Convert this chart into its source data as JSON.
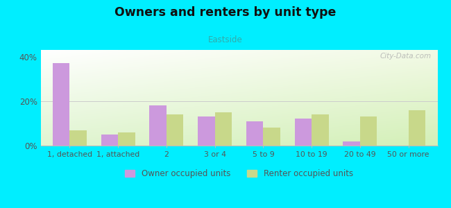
{
  "title": "Owners and renters by unit type",
  "subtitle": "Eastside",
  "categories": [
    "1, detached",
    "1, attached",
    "2",
    "3 or 4",
    "5 to 9",
    "10 to 19",
    "20 to 49",
    "50 or more"
  ],
  "owner_values": [
    37,
    5,
    18,
    13,
    11,
    12,
    2,
    0
  ],
  "renter_values": [
    7,
    6,
    14,
    15,
    8,
    14,
    13,
    16
  ],
  "owner_color": "#cc99dd",
  "renter_color": "#c8d88a",
  "background_outer": "#00eeff",
  "ylim": [
    0,
    43
  ],
  "yticks": [
    0,
    20,
    40
  ],
  "ytick_labels": [
    "0%",
    "20%",
    "40%"
  ],
  "bar_width": 0.35,
  "legend_owner": "Owner occupied units",
  "legend_renter": "Renter occupied units",
  "watermark": "City-Data.com",
  "title_color": "#111111",
  "subtitle_color": "#33aaaa",
  "tick_color": "#555555",
  "grid_color": "#dddddd"
}
